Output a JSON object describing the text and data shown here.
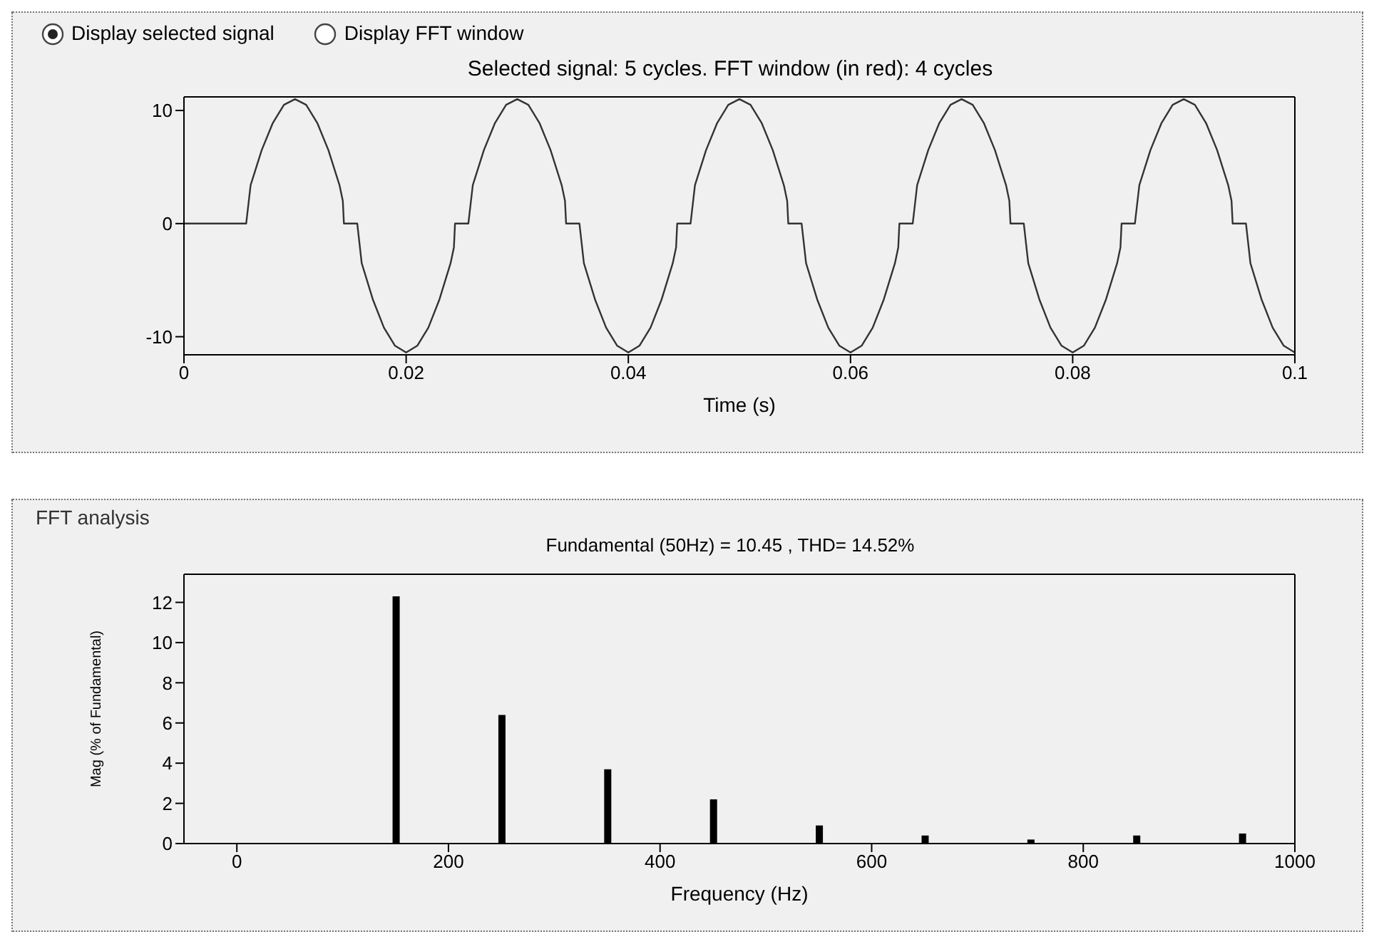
{
  "chart_data": [
    {
      "type": "line",
      "title": "Selected signal: 5 cycles. FFT window (in red): 4 cycles",
      "xlabel": "Time (s)",
      "annotations": [
        "Display selected signal",
        "Display FFT window"
      ],
      "color": "#333333",
      "xlim": [
        0,
        0.1
      ],
      "xticks": [
        0,
        0.02,
        0.04,
        0.06,
        0.08,
        0.1
      ],
      "ylim": [
        -11.6,
        11.2
      ],
      "yticks": [
        -10,
        0,
        10
      ],
      "x": [
        0,
        0.0056,
        0.006,
        0.007,
        0.008,
        0.009,
        0.01,
        0.011,
        0.012,
        0.013,
        0.014,
        0.0143,
        0.0144,
        0.0156,
        0.016,
        0.017,
        0.018,
        0.019,
        0.02,
        0.021,
        0.022,
        0.023,
        0.024,
        0.0243,
        0.0244,
        0.0256,
        0.026,
        0.027,
        0.028,
        0.029,
        0.03,
        0.031,
        0.032,
        0.033,
        0.034,
        0.0343,
        0.0344,
        0.0356,
        0.036,
        0.037,
        0.038,
        0.039,
        0.04,
        0.041,
        0.042,
        0.043,
        0.044,
        0.0443,
        0.0444,
        0.0456,
        0.046,
        0.047,
        0.048,
        0.049,
        0.05,
        0.051,
        0.052,
        0.053,
        0.054,
        0.0543,
        0.0544,
        0.0556,
        0.056,
        0.057,
        0.058,
        0.059,
        0.06,
        0.061,
        0.062,
        0.063,
        0.064,
        0.0643,
        0.0644,
        0.0656,
        0.066,
        0.067,
        0.068,
        0.069,
        0.07,
        0.071,
        0.072,
        0.073,
        0.074,
        0.0743,
        0.0744,
        0.0756,
        0.076,
        0.077,
        0.078,
        0.079,
        0.08,
        0.081,
        0.082,
        0.083,
        0.084,
        0.0843,
        0.0844,
        0.0856,
        0.086,
        0.087,
        0.088,
        0.089,
        0.09,
        0.091,
        0.092,
        0.093,
        0.094,
        0.0943,
        0.0944,
        0.0956,
        0.096,
        0.097,
        0.098,
        0.099,
        0.1
      ],
      "values": [
        0,
        0,
        3.4,
        6.5,
        8.9,
        10.5,
        11,
        10.5,
        8.9,
        6.5,
        3.4,
        2,
        0,
        0,
        -3.5,
        -6.7,
        -9.2,
        -10.8,
        -11.4,
        -10.8,
        -9.2,
        -6.7,
        -3.5,
        -2.1,
        0,
        0,
        3.4,
        6.5,
        8.9,
        10.5,
        11,
        10.5,
        8.9,
        6.5,
        3.4,
        2,
        0,
        0,
        -3.5,
        -6.7,
        -9.2,
        -10.8,
        -11.4,
        -10.8,
        -9.2,
        -6.7,
        -3.5,
        -2.1,
        0,
        0,
        3.4,
        6.5,
        8.9,
        10.5,
        11,
        10.5,
        8.9,
        6.5,
        3.4,
        2,
        0,
        0,
        -3.5,
        -6.7,
        -9.2,
        -10.8,
        -11.4,
        -10.8,
        -9.2,
        -6.7,
        -3.5,
        -2.1,
        0,
        0,
        3.4,
        6.5,
        8.9,
        10.5,
        11,
        10.5,
        8.9,
        6.5,
        3.4,
        2,
        0,
        0,
        -3.5,
        -6.7,
        -9.2,
        -10.8,
        -11.4,
        -10.8,
        -9.2,
        -6.7,
        -3.5,
        -2.1,
        0,
        0,
        3.4,
        6.5,
        8.9,
        10.5,
        11,
        10.5,
        8.9,
        6.5,
        3.4,
        2,
        0,
        0,
        -3.5,
        -6.7,
        -9.2,
        -10.8,
        -11.4
      ]
    },
    {
      "type": "bar",
      "title": "Fundamental (50Hz) = 10.45 , THD= 14.52%",
      "xlabel": "Frequency (Hz)",
      "ylabel": "Mag (% of Fundamental)",
      "annotations": [
        "FFT analysis"
      ],
      "color": "#000000",
      "xlim": [
        -50,
        1000
      ],
      "xticks": [
        0,
        200,
        400,
        600,
        800,
        1000
      ],
      "ylim": [
        0,
        13.4
      ],
      "yticks": [
        0,
        2,
        4,
        6,
        8,
        10,
        12
      ],
      "x": [
        150,
        250,
        350,
        450,
        550,
        650,
        750,
        850,
        950
      ],
      "values": [
        12.3,
        6.4,
        3.7,
        2.2,
        0.9,
        0.4,
        0.2,
        0.4,
        0.5
      ]
    }
  ]
}
